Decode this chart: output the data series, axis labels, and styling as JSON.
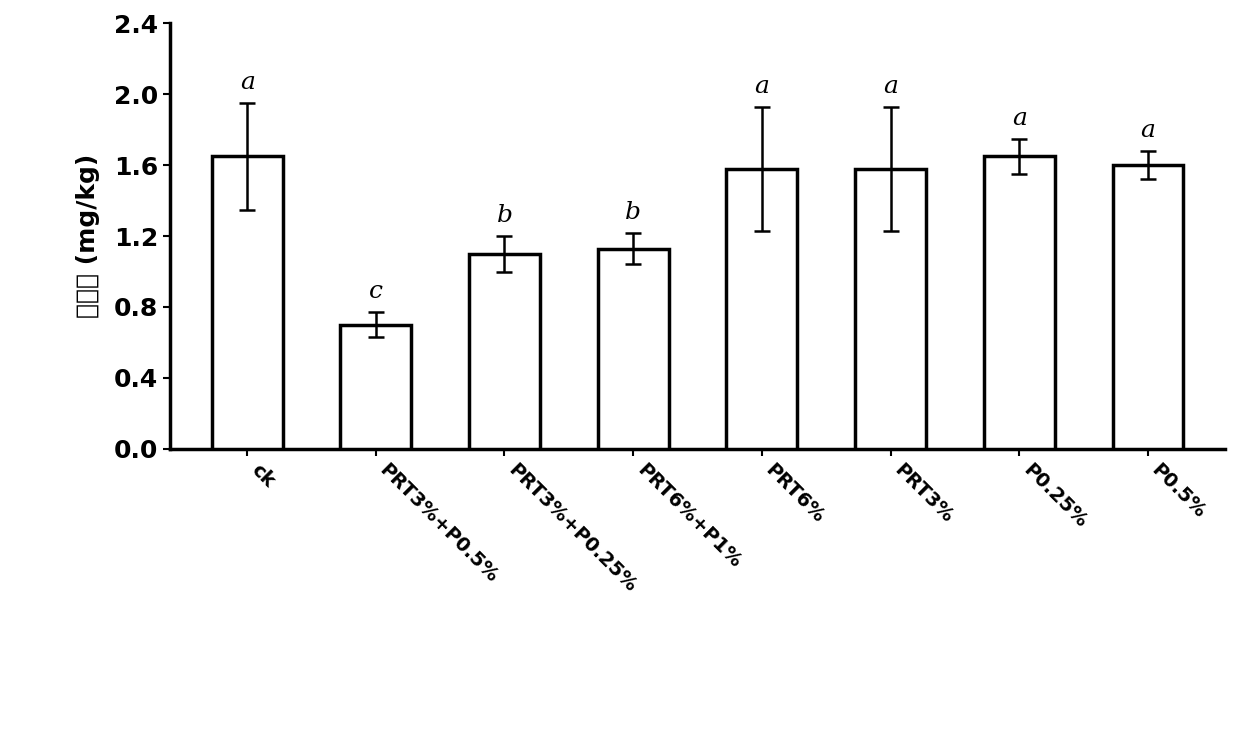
{
  "categories": [
    "ck",
    "PRT3%+P0.5%",
    "PRT3%+P0.25%",
    "PRT6%+P1%",
    "PRT6%",
    "PRT3%",
    "P0.25%",
    "P0.5%"
  ],
  "values": [
    1.65,
    0.7,
    1.1,
    1.13,
    1.58,
    1.58,
    1.65,
    1.6
  ],
  "errors": [
    0.3,
    0.07,
    0.1,
    0.09,
    0.35,
    0.35,
    0.1,
    0.08
  ],
  "sig_labels": [
    "a",
    "c",
    "b",
    "b",
    "a",
    "a",
    "a",
    "a"
  ],
  "ylabel": "汞含量 (mg/kg)",
  "ylim": [
    0.0,
    2.4
  ],
  "yticks": [
    0.0,
    0.4,
    0.8,
    1.2,
    1.6,
    2.0,
    2.4
  ],
  "bar_color": "#ffffff",
  "bar_edgecolor": "#000000",
  "bar_linewidth": 2.5,
  "error_color": "#000000",
  "error_linewidth": 1.8,
  "error_capsize": 6,
  "sig_fontsize": 18,
  "ylabel_fontsize": 18,
  "tick_fontsize": 18,
  "xtick_fontsize": 14,
  "background_color": "#ffffff",
  "fig_width": 12.39,
  "fig_height": 7.44
}
